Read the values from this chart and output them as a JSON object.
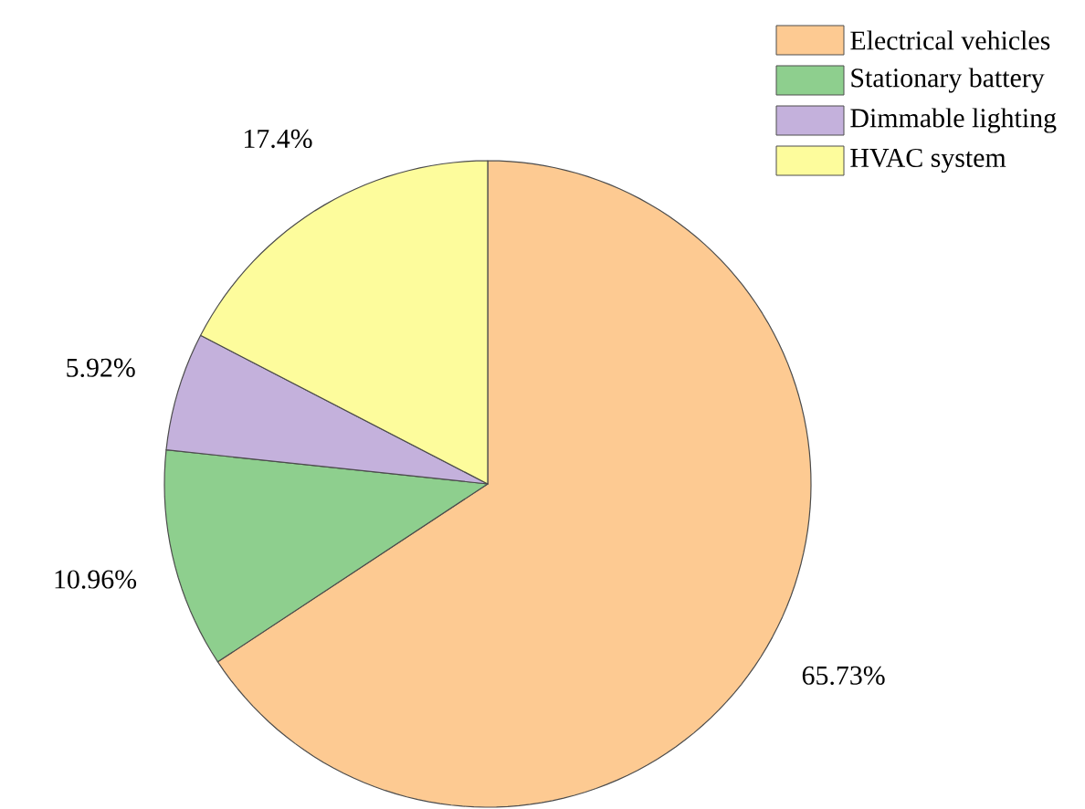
{
  "chart_data": {
    "type": "pie",
    "categories": [
      "Electrical vehicles",
      "Stationary battery",
      "Dimmable lighting",
      "HVAC system"
    ],
    "values": [
      65.73,
      10.96,
      5.92,
      17.4
    ],
    "value_labels": [
      "65.73%",
      "10.96%",
      "5.92%",
      "17.4%"
    ],
    "colors": [
      "#fdca92",
      "#8ecf8e",
      "#c4b1dc",
      "#fdfc9c"
    ],
    "legend": "top right"
  }
}
